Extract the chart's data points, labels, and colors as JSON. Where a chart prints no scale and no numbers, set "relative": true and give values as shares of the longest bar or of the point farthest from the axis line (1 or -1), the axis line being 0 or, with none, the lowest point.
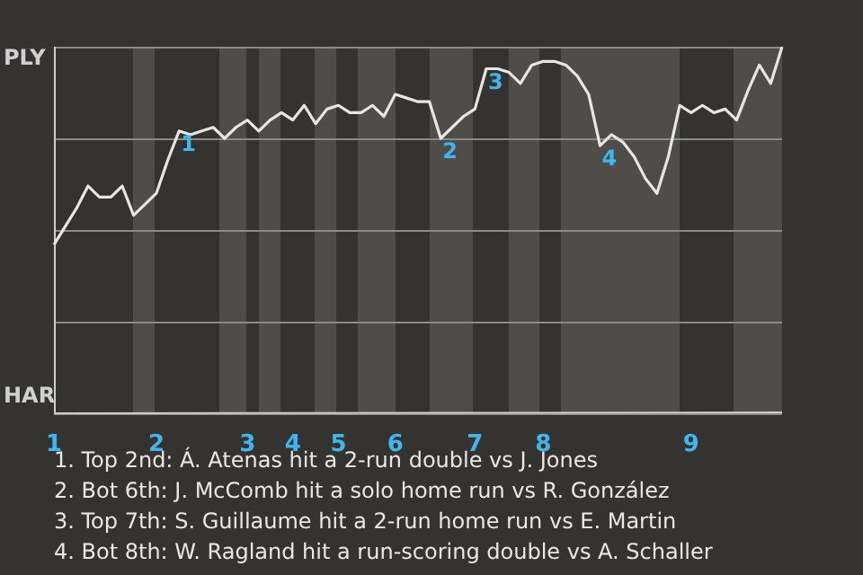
{
  "chart_data": {
    "type": "line",
    "relative": true,
    "categories": [
      "1",
      null,
      null,
      null,
      null,
      null,
      null,
      null,
      null,
      "2",
      null,
      null,
      null,
      null,
      null,
      null,
      null,
      "3",
      null,
      null,
      null,
      "4",
      null,
      null,
      null,
      "5",
      null,
      null,
      null,
      null,
      "6",
      null,
      null,
      null,
      null,
      null,
      null,
      "7",
      null,
      null,
      null,
      null,
      null,
      "8",
      null,
      null,
      null,
      null,
      null,
      null,
      null,
      null,
      null,
      null,
      null,
      null,
      "9",
      null,
      null,
      null,
      null,
      null,
      null,
      null,
      null
    ],
    "series": [
      {
        "color": "#e6e6e6",
        "values": [
          0.46,
          0.51,
          0.56,
          0.62,
          0.59,
          0.59,
          0.62,
          0.54,
          0.57,
          0.6,
          0.69,
          0.77,
          0.76,
          0.77,
          0.78,
          0.75,
          0.78,
          0.8,
          0.77,
          0.8,
          0.82,
          0.8,
          0.84,
          0.79,
          0.83,
          0.84,
          0.82,
          0.82,
          0.84,
          0.81,
          0.87,
          0.86,
          0.85,
          0.85,
          0.75,
          0.78,
          0.81,
          0.83,
          0.94,
          0.94,
          0.93,
          0.9,
          0.95,
          0.96,
          0.96,
          0.95,
          0.92,
          0.87,
          0.73,
          0.76,
          0.74,
          0.7,
          0.64,
          0.6,
          0.7,
          0.84,
          0.82,
          0.84,
          0.82,
          0.83,
          0.8,
          0.88,
          0.95,
          0.9,
          1
        ]
      }
    ],
    "grid": "y",
    "legend": false,
    "marker": "none",
    "line_style": "solid",
    "annotations": [
      "PLY",
      "HAR",
      {
        "text": "1",
        "y": 0.77
      },
      {
        "text": "2",
        "y": 0.75
      },
      {
        "text": "3",
        "y": 0.94
      },
      {
        "text": "4",
        "y": 0.73
      },
      "1. Top 2nd: Á. Atenas hit a 2-run double vs J. Jones",
      "2. Bot 6th: J. McComb hit a solo home run vs R. González",
      "3. Top 7th: S. Guillaume hit a 2-run home run vs E. Martin",
      "4. Bot 8th: W. Ragland hit a run-scoring double vs A. Schaller"
    ]
  }
}
